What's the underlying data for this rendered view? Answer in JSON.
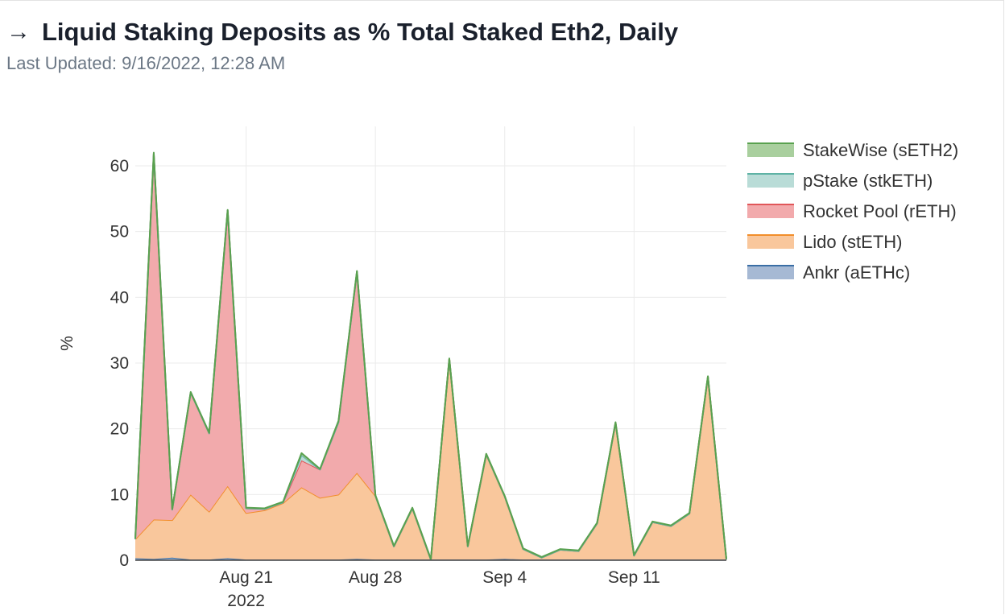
{
  "header": {
    "arrow_icon": "→",
    "title": "Liquid Staking Deposits as % Total Staked Eth2, Daily",
    "last_updated": "Last Updated: 9/16/2022, 12:28 AM"
  },
  "chart_data": {
    "type": "area",
    "stacked": true,
    "ylabel": "%",
    "xlabel": "",
    "ylim": [
      0,
      66
    ],
    "yticks": [
      0,
      10,
      20,
      30,
      40,
      50,
      60
    ],
    "xlim": [
      "2022-08-15",
      "2022-09-16"
    ],
    "xticks": [
      {
        "date": "2022-08-21",
        "label": "Aug 21",
        "sublabel": "2022"
      },
      {
        "date": "2022-08-28",
        "label": "Aug 28",
        "sublabel": ""
      },
      {
        "date": "2022-09-04",
        "label": "Sep 4",
        "sublabel": ""
      },
      {
        "date": "2022-09-11",
        "label": "Sep 11",
        "sublabel": ""
      }
    ],
    "grid": true,
    "legend_position": "top-right",
    "x": [
      "2022-08-15",
      "2022-08-16",
      "2022-08-17",
      "2022-08-18",
      "2022-08-19",
      "2022-08-20",
      "2022-08-21",
      "2022-08-22",
      "2022-08-23",
      "2022-08-24",
      "2022-08-25",
      "2022-08-26",
      "2022-08-27",
      "2022-08-28",
      "2022-08-29",
      "2022-08-30",
      "2022-08-31",
      "2022-09-01",
      "2022-09-02",
      "2022-09-03",
      "2022-09-04",
      "2022-09-05",
      "2022-09-06",
      "2022-09-07",
      "2022-09-08",
      "2022-09-09",
      "2022-09-10",
      "2022-09-11",
      "2022-09-12",
      "2022-09-13",
      "2022-09-14",
      "2022-09-15",
      "2022-09-16"
    ],
    "series": [
      {
        "name": "Ankr (aETHc)",
        "line_color": "#3a6ea5",
        "fill_color": "#a6b9d4",
        "values": [
          0.3,
          0.2,
          0.4,
          0.1,
          0.1,
          0.3,
          0.1,
          0.1,
          0.1,
          0.1,
          0.1,
          0.1,
          0.2,
          0.1,
          0.1,
          0.1,
          0.1,
          0.1,
          0.1,
          0.1,
          0.2,
          0.1,
          0.1,
          0.1,
          0.1,
          0.1,
          0.1,
          0.1,
          0.1,
          0.1,
          0.1,
          0.1,
          0.1
        ]
      },
      {
        "name": "Lido (stETH)",
        "line_color": "#f28e2b",
        "fill_color": "#f9c79c",
        "values": [
          2.9,
          6.0,
          5.7,
          9.9,
          7.3,
          11.0,
          7.1,
          7.5,
          8.6,
          11.0,
          9.4,
          9.9,
          13.1,
          9.7,
          2.0,
          7.8,
          0.0,
          30.5,
          2.0,
          16.0,
          9.5,
          1.6,
          0.3,
          1.5,
          1.3,
          5.5,
          20.8,
          0.6,
          5.7,
          5.1,
          7.0,
          27.8,
          0.0
        ]
      },
      {
        "name": "Rocket Pool (rETH)",
        "line_color": "#e15759",
        "fill_color": "#f2aaac",
        "values": [
          0.0,
          55.6,
          1.6,
          15.5,
          11.9,
          41.9,
          0.7,
          0.2,
          0.1,
          4.1,
          4.3,
          11.0,
          30.6,
          0.0,
          0.0,
          0.0,
          0.0,
          0.0,
          0.0,
          0.0,
          0.0,
          0.0,
          0.0,
          0.0,
          0.0,
          0.0,
          0.0,
          0.0,
          0.0,
          0.0,
          0.0,
          0.0,
          0.0
        ]
      },
      {
        "name": "pStake (stkETH)",
        "line_color": "#5fb3a5",
        "fill_color": "#b9dcd7",
        "values": [
          0,
          0,
          0,
          0,
          0,
          0,
          0,
          0,
          0,
          0.8,
          0,
          0,
          0,
          0,
          0,
          0,
          0,
          0,
          0,
          0,
          0,
          0,
          0,
          0,
          0,
          0,
          0,
          0,
          0,
          0,
          0,
          0,
          0
        ]
      },
      {
        "name": "StakeWise (sETH2)",
        "line_color": "#59a14f",
        "fill_color": "#a9cf9e",
        "values": [
          0.1,
          0.2,
          0.1,
          0.1,
          0.1,
          0.1,
          0.1,
          0.1,
          0.1,
          0.3,
          0.1,
          0.2,
          0.1,
          0.1,
          0.1,
          0.1,
          0.1,
          0.1,
          0.1,
          0.1,
          0.1,
          0.1,
          0.1,
          0.1,
          0.1,
          0.1,
          0.1,
          0.1,
          0.1,
          0.1,
          0.1,
          0.1,
          0.1
        ]
      }
    ]
  }
}
